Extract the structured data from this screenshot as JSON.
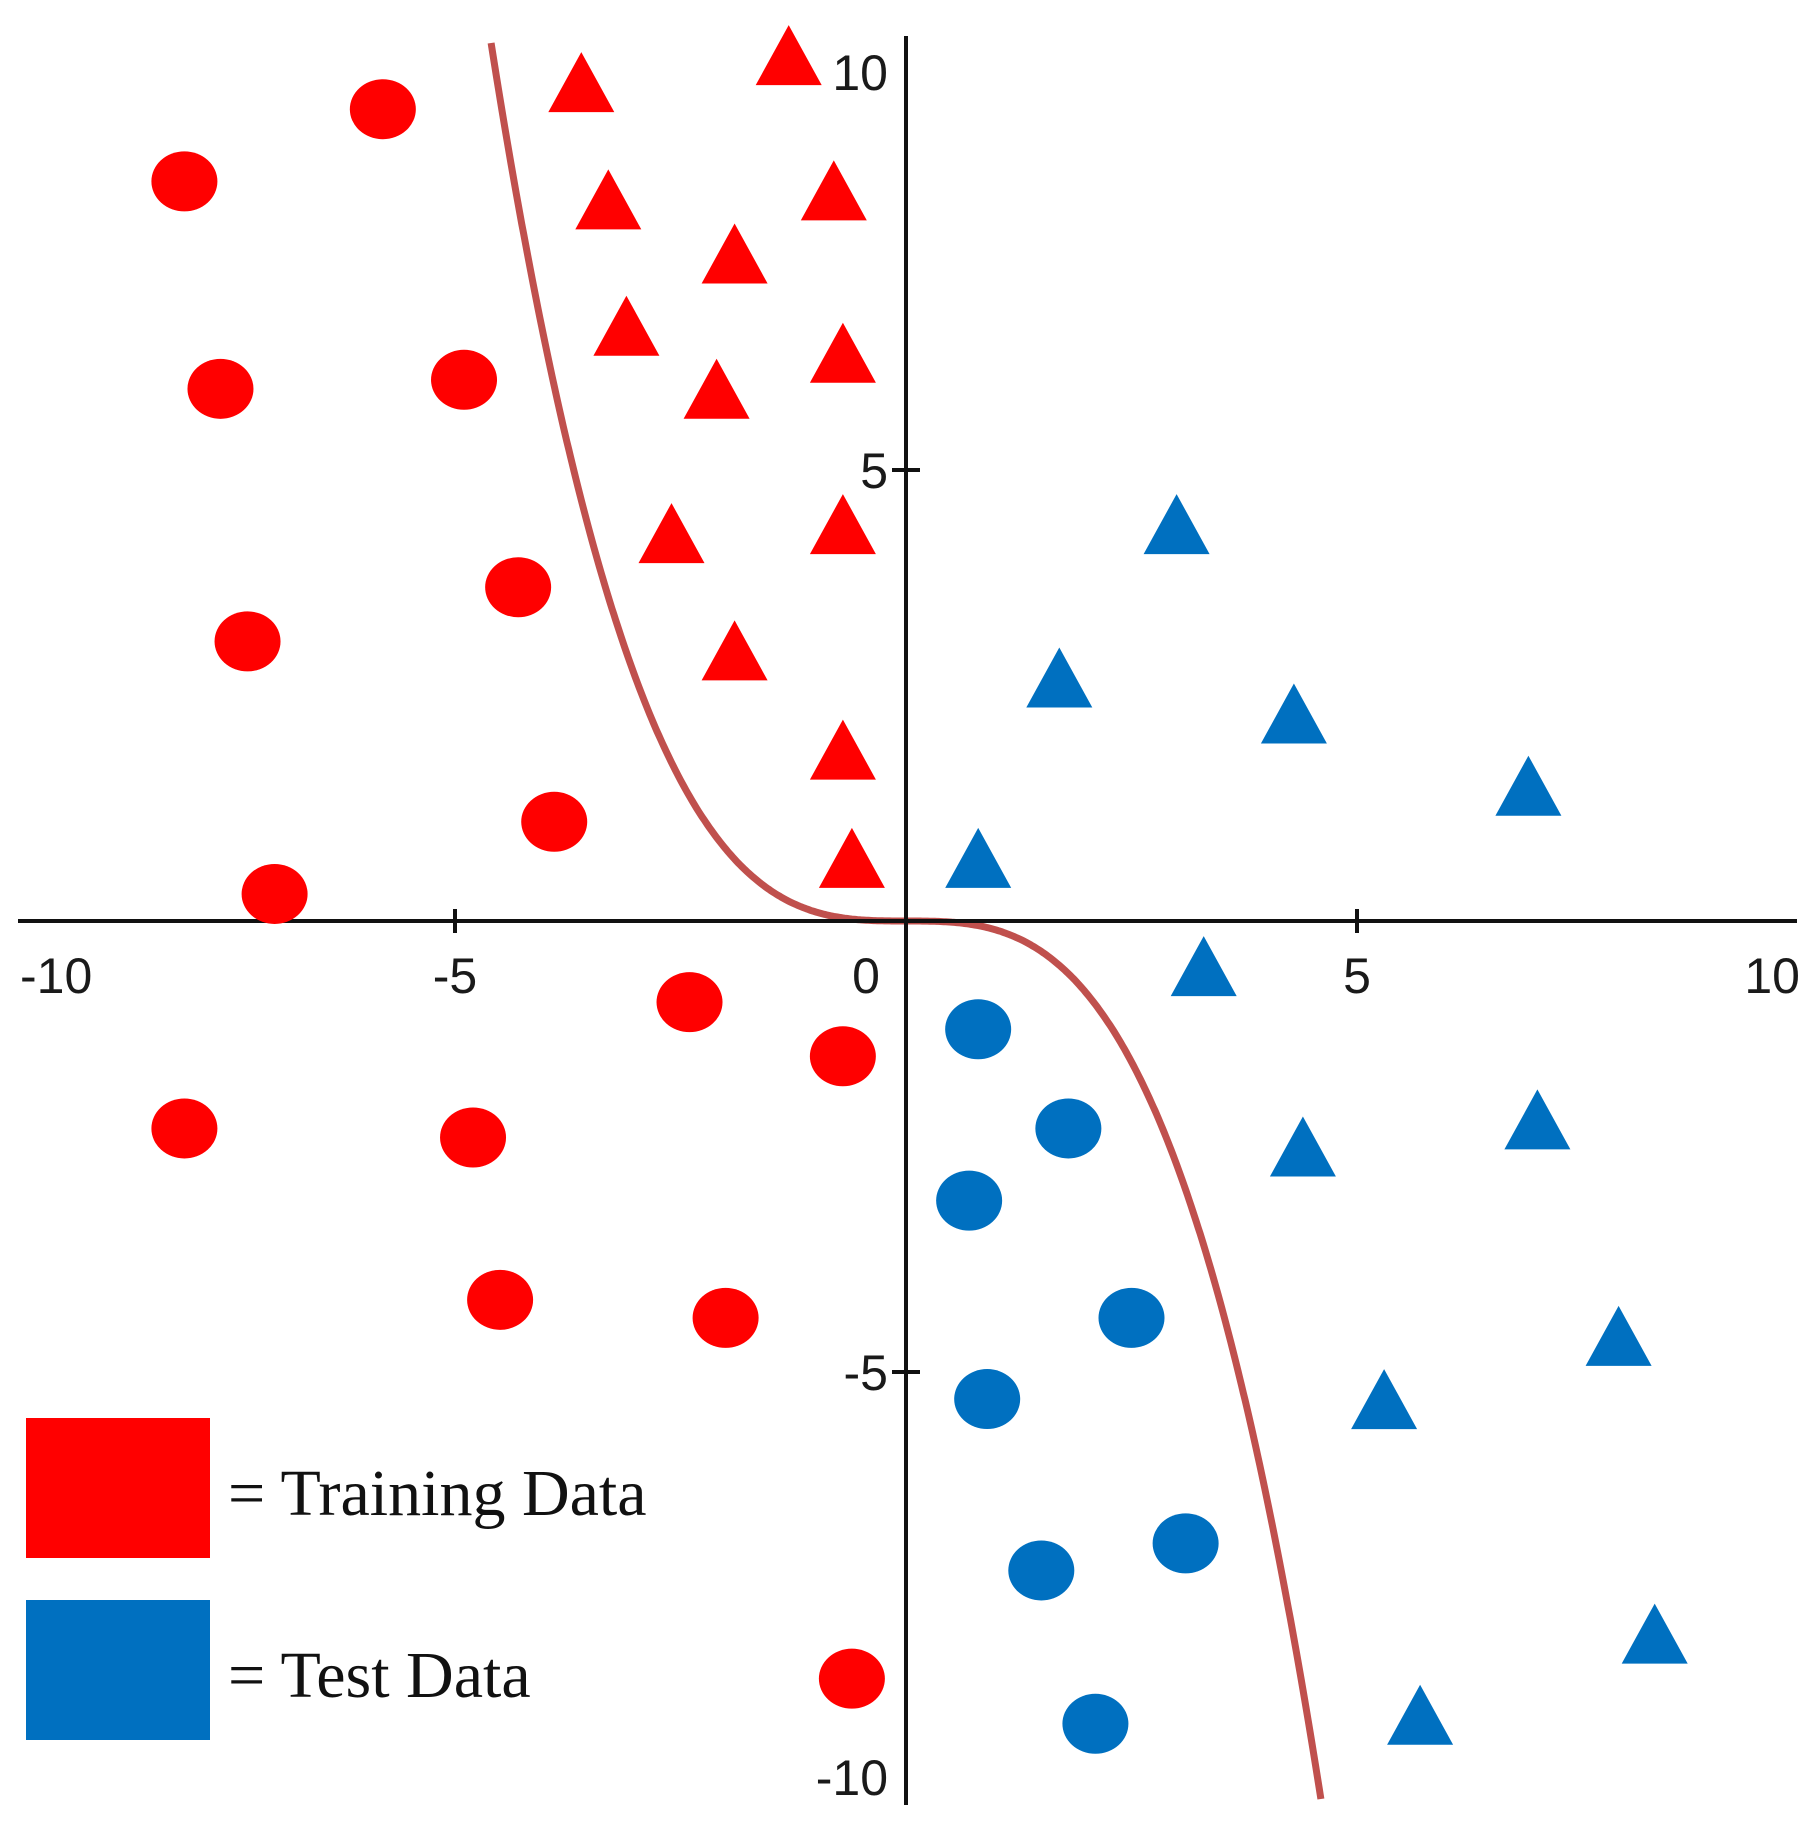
{
  "chart_data": {
    "type": "scatter",
    "xlim": [
      -10,
      10
    ],
    "ylim": [
      -10,
      10
    ],
    "x_ticks": [
      -10,
      -5,
      0,
      5,
      10
    ],
    "y_ticks": [
      10,
      5,
      -5,
      -10
    ],
    "x_tick_labels": [
      "-10",
      "-5",
      "0",
      "5",
      "10"
    ],
    "y_tick_labels": [
      "10",
      "5",
      "-5",
      "-10"
    ],
    "grid": false,
    "legend_position": "bottom-left",
    "legend": [
      {
        "label": "= Training Data",
        "color": "#ff0000"
      },
      {
        "label": "= Test Data",
        "color": "#0070c0"
      }
    ],
    "curve": {
      "color": "#c0504d",
      "function": "y = -x^3 / 10"
    },
    "series": [
      {
        "color": "#ff0000",
        "marker": "circle",
        "points": [
          [
            -5.8,
            9.0
          ],
          [
            -8.0,
            8.2
          ],
          [
            -7.6,
            5.9
          ],
          [
            -4.9,
            6.0
          ],
          [
            -4.3,
            3.7
          ],
          [
            -7.3,
            3.1
          ],
          [
            -3.9,
            1.1
          ],
          [
            -7.0,
            0.3
          ],
          [
            -2.4,
            -0.9
          ],
          [
            -0.7,
            -1.5
          ],
          [
            -8.0,
            -2.3
          ],
          [
            -4.8,
            -2.4
          ],
          [
            -4.5,
            -4.2
          ],
          [
            -2.0,
            -4.4
          ],
          [
            -0.6,
            -8.4
          ]
        ]
      },
      {
        "color": "#ff0000",
        "marker": "triangle",
        "points": [
          [
            -3.6,
            9.3
          ],
          [
            -1.3,
            9.6
          ],
          [
            -3.3,
            8.0
          ],
          [
            -0.8,
            8.1
          ],
          [
            -1.9,
            7.4
          ],
          [
            -3.1,
            6.6
          ],
          [
            -0.7,
            6.3
          ],
          [
            -2.1,
            5.9
          ],
          [
            -2.6,
            4.3
          ],
          [
            -0.7,
            4.4
          ],
          [
            -1.9,
            3.0
          ],
          [
            -0.7,
            1.9
          ],
          [
            -0.6,
            0.7
          ]
        ]
      },
      {
        "color": "#0070c0",
        "marker": "triangle",
        "points": [
          [
            3.0,
            4.4
          ],
          [
            1.7,
            2.7
          ],
          [
            4.3,
            2.3
          ],
          [
            6.9,
            1.5
          ],
          [
            0.8,
            0.7
          ],
          [
            3.3,
            -0.5
          ],
          [
            4.4,
            -2.5
          ],
          [
            7.0,
            -2.2
          ],
          [
            7.9,
            -4.6
          ],
          [
            5.3,
            -5.3
          ],
          [
            8.3,
            -7.9
          ],
          [
            5.7,
            -8.8
          ]
        ]
      },
      {
        "color": "#0070c0",
        "marker": "circle",
        "points": [
          [
            0.8,
            -1.2
          ],
          [
            1.8,
            -2.3
          ],
          [
            0.7,
            -3.1
          ],
          [
            2.5,
            -4.4
          ],
          [
            0.9,
            -5.3
          ],
          [
            1.5,
            -7.2
          ],
          [
            3.1,
            -6.9
          ],
          [
            2.1,
            -8.9
          ]
        ]
      }
    ]
  }
}
